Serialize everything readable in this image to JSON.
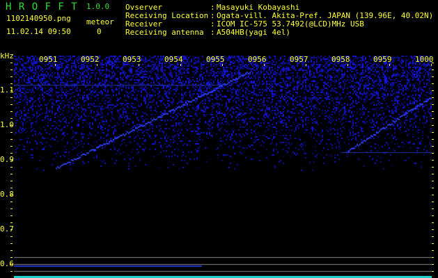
{
  "app": {
    "title": "H R O F F T",
    "version": "1.0.0"
  },
  "file": {
    "name": "1102140950.png",
    "timestamp": "11.02.14 09:50"
  },
  "meteor": {
    "label": "meteor",
    "count": "0"
  },
  "info": [
    {
      "label": "Ovserver",
      "value": "Masayuki Kobayashi"
    },
    {
      "label": "Receiving Location",
      "value": "Ogata-vill. Akita-Pref. JAPAN (139.96E, 40.02N)"
    },
    {
      "label": "Receiver",
      "value": "ICOM IC-575 53.7492(@LCD)MHz USB"
    },
    {
      "label": "Receiving antenna",
      "value": "A504HB(yagi 4el)"
    }
  ],
  "axis": {
    "y_unit": "kHz",
    "y_ticks": [
      "1.1",
      "1.0",
      "0.9",
      "0.8",
      "0.7",
      "0.6"
    ],
    "time_ticks": [
      "0951",
      "0952",
      "0953",
      "0954",
      "0955",
      "0956",
      "0957",
      "0958",
      "0959",
      "1000"
    ]
  },
  "colors": {
    "text": "#ffff33",
    "title": "#33dd33",
    "noise": "#1a1aff"
  }
}
